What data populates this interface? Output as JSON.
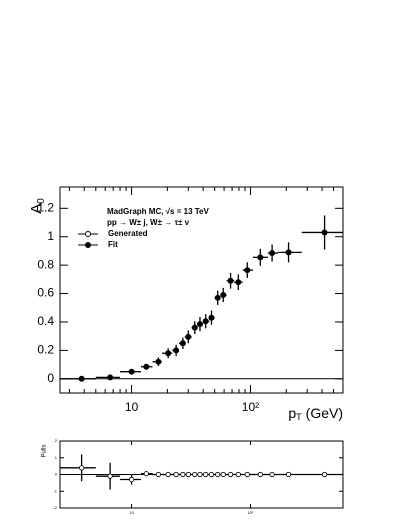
{
  "chart_data": [
    {
      "type": "scatter",
      "ylabel": "A",
      "ylabel_sub": "0",
      "xlabel": "p",
      "xlabel_sub": "T",
      "xlabel_unit": "(GeV)",
      "annotations": [
        "MadGraph MC, √s = 13 TeV",
        "pp → W± j, W± → τ± ν"
      ],
      "legend": [
        {
          "label": "Generated",
          "marker": "open"
        },
        {
          "label": "Fit",
          "marker": "filled"
        }
      ],
      "log_x": true,
      "xlim": [
        2.5,
        600
      ],
      "ylim": [
        -0.1,
        1.35
      ],
      "xticks": [
        10,
        {
          "value": 100,
          "label": "10²"
        }
      ],
      "xminor_ticks": [
        3,
        4,
        5,
        6,
        7,
        8,
        9,
        20,
        30,
        40,
        50,
        60,
        70,
        80,
        90,
        200,
        300,
        400,
        500
      ],
      "yticks": [
        0,
        0.2,
        0.4,
        0.6,
        0.8,
        1,
        1.2
      ],
      "hline": 0,
      "bins": [
        2.5,
        5,
        8,
        12,
        15,
        18,
        22,
        25,
        28,
        32,
        36,
        40,
        45,
        50,
        56,
        63,
        73,
        86,
        105,
        140,
        170,
        270,
        600
      ],
      "x": [
        3.8,
        6.6,
        10,
        13.3,
        16.8,
        20.3,
        23.7,
        27,
        30,
        34,
        37.6,
        42,
        47,
        53,
        59,
        68,
        79,
        94,
        121,
        152,
        209,
        420
      ],
      "values": [
        0.0,
        0.01,
        0.05,
        0.085,
        0.12,
        0.18,
        0.2,
        0.25,
        0.295,
        0.36,
        0.385,
        0.405,
        0.43,
        0.57,
        0.59,
        0.69,
        0.68,
        0.765,
        0.855,
        0.885,
        0.89,
        1.03
      ],
      "yerr": [
        0.01,
        0.01,
        0.015,
        0.02,
        0.03,
        0.035,
        0.04,
        0.04,
        0.045,
        0.045,
        0.05,
        0.05,
        0.05,
        0.05,
        0.05,
        0.055,
        0.055,
        0.055,
        0.06,
        0.06,
        0.07,
        0.12
      ],
      "marker": "filled"
    },
    {
      "type": "scatter",
      "ylabel": "Pulls",
      "log_x": true,
      "xlim": [
        2.5,
        600
      ],
      "ylim": [
        -2,
        2
      ],
      "xticks": [
        10,
        {
          "value": 100,
          "label": "10²"
        }
      ],
      "yticks": [
        -2,
        -1,
        0,
        1,
        2
      ],
      "hline": 0,
      "bins": [
        2.5,
        5,
        8,
        12,
        15,
        18,
        22,
        25,
        28,
        32,
        36,
        40,
        45,
        50,
        56,
        63,
        73,
        86,
        105,
        140,
        170,
        270,
        600
      ],
      "x": [
        3.8,
        6.6,
        10,
        13.3,
        16.8,
        20.3,
        23.7,
        27,
        30,
        34,
        37.6,
        42,
        47,
        53,
        59,
        68,
        79,
        94,
        121,
        152,
        209,
        420
      ],
      "values": [
        0.4,
        -0.1,
        -0.3,
        0.05,
        0,
        0,
        0,
        0,
        0,
        0,
        0,
        0,
        0,
        0,
        0,
        0,
        0,
        0,
        0,
        0,
        0,
        0
      ],
      "yerr": [
        0.8,
        0.8,
        0.3,
        0.15,
        0.1,
        0.1,
        0.1,
        0.1,
        0.1,
        0.1,
        0.1,
        0.1,
        0.1,
        0.1,
        0.1,
        0.1,
        0.1,
        0.1,
        0.1,
        0.1,
        0.1,
        0.1
      ],
      "marker": "open"
    }
  ]
}
